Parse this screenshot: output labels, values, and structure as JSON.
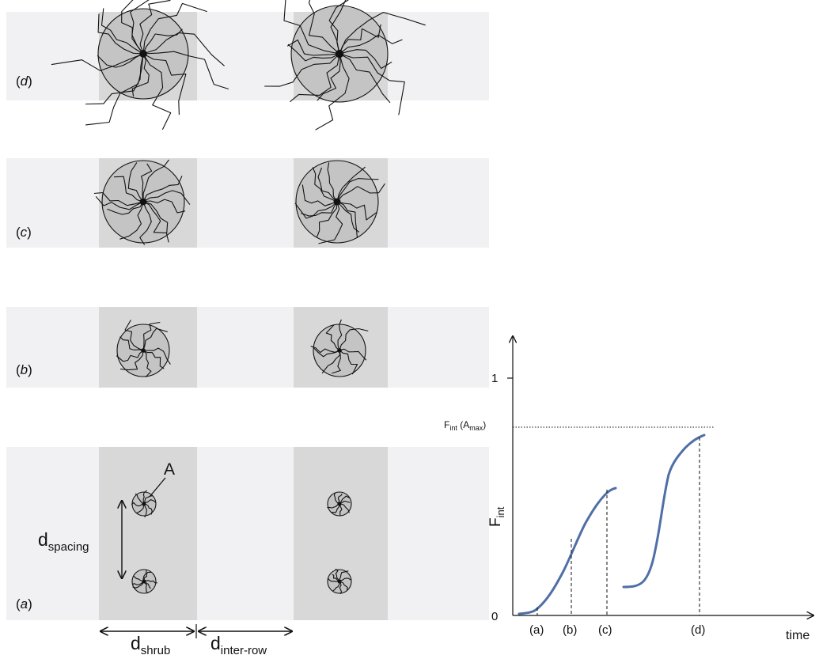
{
  "panels": [
    {
      "id": "a",
      "open": "(",
      "letter": "a",
      "close": ")"
    },
    {
      "id": "b",
      "open": "(",
      "letter": "b",
      "close": ")"
    },
    {
      "id": "c",
      "open": "(",
      "letter": "c",
      "close": ")"
    },
    {
      "id": "d",
      "open": "(",
      "letter": "d",
      "close": ")"
    }
  ],
  "shrub_label": "A",
  "dimensions": {
    "spacing": {
      "main": "d",
      "sub": "spacing"
    },
    "shrub": {
      "main": "d",
      "sub": "shrub"
    },
    "inter_row": {
      "main": "d",
      "sub": "inter-row"
    }
  },
  "graph": {
    "y_axis": {
      "main": "F",
      "sub": "int",
      "tick_top": "1",
      "tick_zero": "0"
    },
    "x_axis": {
      "label": "time"
    },
    "reference_line": {
      "main": "F",
      "sub": "int",
      "open": " (A",
      "sub2": "max",
      "close": ")"
    },
    "markers": [
      "(a)",
      "(b)",
      "(c)",
      "(d)"
    ]
  },
  "colors": {
    "background": "#ffffff",
    "row_band": "#f1f1f3",
    "shrub_column": "#d8d8d8",
    "canopy_fill": "#c4c4c4",
    "root_stroke": "#111111",
    "curve": "#4f6fa6"
  }
}
